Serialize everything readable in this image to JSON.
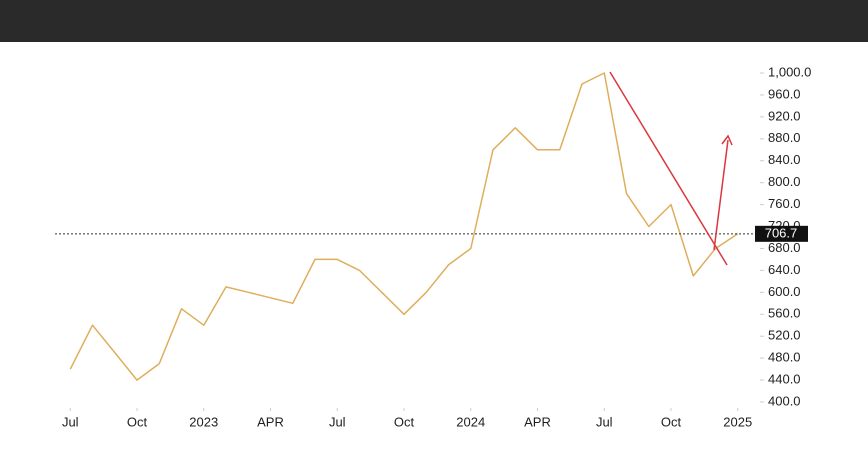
{
  "chart_data": {
    "type": "line",
    "x": [
      "2022-07",
      "2022-08",
      "2022-09",
      "2022-10",
      "2022-11",
      "2022-12",
      "2023-01",
      "2023-02",
      "2023-03",
      "2023-04",
      "2023-05",
      "2023-06",
      "2023-07",
      "2023-08",
      "2023-09",
      "2023-10",
      "2023-11",
      "2023-12",
      "2024-01",
      "2024-02",
      "2024-03",
      "2024-04",
      "2024-05",
      "2024-06",
      "2024-07",
      "2024-08",
      "2024-09",
      "2024-10",
      "2024-11",
      "2024-12",
      "2025-01"
    ],
    "values": [
      460,
      540,
      490,
      440,
      470,
      570,
      540,
      610,
      600,
      590,
      580,
      660,
      660,
      640,
      600,
      560,
      600,
      650,
      680,
      860,
      900,
      860,
      860,
      980,
      1000,
      780,
      720,
      760,
      630,
      680,
      706.7
    ],
    "color": "#dfae5c",
    "xlim": [
      "2022-06",
      "2025-02"
    ],
    "xticks": [
      {
        "value": "2022-07",
        "label": "Jul"
      },
      {
        "value": "2022-10",
        "label": "Oct"
      },
      {
        "value": "2023-01",
        "label": "2023"
      },
      {
        "value": "2023-04",
        "label": "APR"
      },
      {
        "value": "2023-07",
        "label": "Jul"
      },
      {
        "value": "2023-10",
        "label": "Oct"
      },
      {
        "value": "2024-01",
        "label": "2024"
      },
      {
        "value": "2024-04",
        "label": "APR"
      },
      {
        "value": "2024-07",
        "label": "Jul"
      },
      {
        "value": "2024-10",
        "label": "Oct"
      },
      {
        "value": "2025-01",
        "label": "2025"
      }
    ],
    "ylim": [
      400,
      1000
    ],
    "yticks": [
      {
        "value": 400,
        "label": "400.0"
      },
      {
        "value": 440,
        "label": "440.0"
      },
      {
        "value": 480,
        "label": "480.0"
      },
      {
        "value": 520,
        "label": "520.0"
      },
      {
        "value": 560,
        "label": "560.0"
      },
      {
        "value": 600,
        "label": "600.0"
      },
      {
        "value": 640,
        "label": "640.0"
      },
      {
        "value": 680,
        "label": "680.0"
      },
      {
        "value": 720,
        "label": "720.0"
      },
      {
        "value": 760,
        "label": "760.0"
      },
      {
        "value": 800,
        "label": "800.0"
      },
      {
        "value": 840,
        "label": "840.0"
      },
      {
        "value": 880,
        "label": "880.0"
      },
      {
        "value": 920,
        "label": "920.0"
      },
      {
        "value": 960,
        "label": "960.0"
      },
      {
        "value": 1000,
        "label": "1,000.0"
      }
    ]
  }
}
